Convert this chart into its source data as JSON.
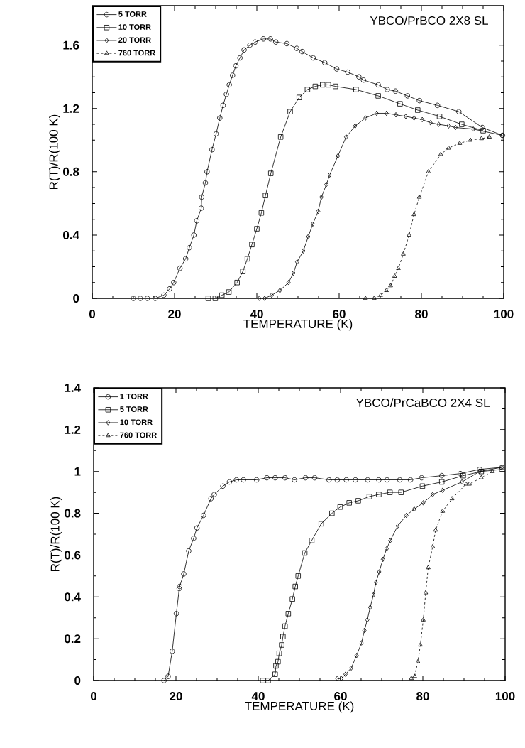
{
  "chart_data": [
    {
      "type": "line",
      "title": "YBCO/PrBCO 2X8 SL",
      "xlabel": "TEMPERATURE (K)",
      "ylabel": "R(T)/R(100 K)",
      "xlim": [
        0,
        100
      ],
      "ylim": [
        0,
        1.85
      ],
      "xticks": [
        0,
        20,
        40,
        60,
        80,
        100
      ],
      "yticks": [
        0,
        0.4,
        0.8,
        1.2,
        1.6
      ],
      "legend": "top left",
      "series": [
        {
          "name": "5 TORR",
          "color": "#000000",
          "marker": "circle",
          "line_style": "solid",
          "x": [
            10,
            11.7,
            13.4,
            15.3,
            17.4,
            18.8,
            19.8,
            21.3,
            22.7,
            23.6,
            24.7,
            25.4,
            26.5,
            26.6,
            27.5,
            27.9,
            29.1,
            30.1,
            31.0,
            31.8,
            32.6,
            33.3,
            34.1,
            34.9,
            35.9,
            36.9,
            38.3,
            39.6,
            41.6,
            43.3,
            44.6,
            47.3,
            49.7,
            51,
            53.7,
            56.5,
            59.4,
            62.1,
            64.8,
            65.9,
            69.5,
            71.7,
            73.7,
            76.6,
            79.5,
            83.9,
            89.1,
            94.8,
            99.7
          ],
          "values": [
            0,
            0,
            0,
            0,
            0.02,
            0.06,
            0.1,
            0.19,
            0.25,
            0.32,
            0.4,
            0.49,
            0.57,
            0.64,
            0.73,
            0.8,
            0.94,
            1.04,
            1.14,
            1.22,
            1.29,
            1.35,
            1.41,
            1.47,
            1.52,
            1.57,
            1.6,
            1.62,
            1.64,
            1.64,
            1.62,
            1.61,
            1.58,
            1.56,
            1.52,
            1.49,
            1.45,
            1.43,
            1.4,
            1.38,
            1.35,
            1.32,
            1.31,
            1.28,
            1.25,
            1.22,
            1.18,
            1.08,
            1.03
          ]
        },
        {
          "name": "10 TORR",
          "color": "#000000",
          "marker": "square",
          "line_style": "solid",
          "x": [
            28.2,
            29.9,
            31.5,
            33.2,
            35.2,
            36.6,
            37.7,
            38.8,
            40,
            41.1,
            42.1,
            43.4,
            45.8,
            48.1,
            50.3,
            52.3,
            54.2,
            56,
            57.4,
            59.1,
            64.1,
            69.5,
            74.8,
            79.1,
            84.4,
            89.8,
            95
          ],
          "values": [
            0,
            0,
            0.02,
            0.04,
            0.1,
            0.17,
            0.25,
            0.34,
            0.44,
            0.54,
            0.65,
            0.79,
            1.02,
            1.18,
            1.27,
            1.32,
            1.34,
            1.35,
            1.35,
            1.34,
            1.32,
            1.28,
            1.23,
            1.19,
            1.15,
            1.1,
            1.06
          ]
        },
        {
          "name": "20 TORR",
          "color": "#000000",
          "marker": "diamond",
          "line_style": "solid",
          "x": [
            40.6,
            41.9,
            43.6,
            45.6,
            47.7,
            48.9,
            49.8,
            51.3,
            52.5,
            53.6,
            54.9,
            55.7,
            56.9,
            57.7,
            59.7,
            61.7,
            63.9,
            66.4,
            69.1,
            71.5,
            73.8,
            76.2,
            78.2,
            80.2,
            82.2,
            84.2,
            86.6,
            88.3,
            92.6,
            99.7
          ],
          "values": [
            0,
            0,
            0.02,
            0.05,
            0.1,
            0.16,
            0.23,
            0.3,
            0.39,
            0.47,
            0.55,
            0.64,
            0.72,
            0.78,
            0.9,
            1.02,
            1.09,
            1.14,
            1.17,
            1.17,
            1.16,
            1.15,
            1.14,
            1.13,
            1.11,
            1.1,
            1.09,
            1.08,
            1.07,
            1.03
          ]
        },
        {
          "name": "760 TORR",
          "color": "#000000",
          "marker": "triangle",
          "line_style": "dashed",
          "x": [
            66.4,
            68.5,
            70.1,
            71.5,
            72.5,
            73.5,
            74.4,
            75.6,
            77,
            78.2,
            79.5,
            81.7,
            84.7,
            86.6,
            89.3,
            91.9,
            94.6,
            96.5
          ],
          "values": [
            0,
            0,
            0.02,
            0.05,
            0.08,
            0.14,
            0.19,
            0.28,
            0.4,
            0.53,
            0.64,
            0.8,
            0.91,
            0.95,
            0.98,
            1.0,
            1.01,
            1.02
          ]
        }
      ]
    },
    {
      "type": "line",
      "title": "YBCO/PrCaBCO 2X4 SL",
      "xlabel": "TEMPERATURE (K)",
      "ylabel": "R(T)/R(100 K)",
      "xlim": [
        0,
        100
      ],
      "ylim": [
        0,
        1.4
      ],
      "xticks": [
        0,
        20,
        40,
        60,
        80,
        100
      ],
      "yticks": [
        0,
        0.2,
        0.4,
        0.6,
        0.8,
        1,
        1.2,
        1.4
      ],
      "legend": "top left",
      "series": [
        {
          "name": "1 TORR",
          "color": "#000000",
          "marker": "circle",
          "line_style": "solid",
          "x": [
            17.1,
            18.1,
            19.1,
            20.1,
            20.8,
            20.9,
            21.9,
            23.1,
            24.3,
            25.1,
            26.7,
            28.5,
            29.3,
            31.4,
            33,
            34.7,
            36.4,
            39.6,
            42.1,
            44.1,
            46.5,
            48.8,
            51.5,
            53.7,
            57.2,
            59.2,
            61.4,
            63.6,
            66.6,
            69.3,
            71.3,
            74.4,
            77,
            79.7,
            84.6,
            89.1,
            93.8,
            99.2
          ],
          "values": [
            0,
            0.02,
            0.14,
            0.32,
            0.44,
            0.45,
            0.51,
            0.62,
            0.68,
            0.73,
            0.79,
            0.87,
            0.89,
            0.93,
            0.95,
            0.96,
            0.96,
            0.96,
            0.97,
            0.97,
            0.97,
            0.96,
            0.97,
            0.97,
            0.96,
            0.96,
            0.96,
            0.96,
            0.96,
            0.96,
            0.96,
            0.96,
            0.96,
            0.97,
            0.98,
            0.99,
            1.01,
            1.02
          ]
        },
        {
          "name": "5 TORR",
          "color": "#000000",
          "marker": "square",
          "line_style": "solid",
          "x": [
            41.1,
            42.4,
            44.1,
            44.3,
            44.8,
            45.1,
            45.7,
            46,
            46.5,
            47.3,
            48.3,
            49,
            49.7,
            51.3,
            53,
            55.3,
            57.9,
            59.9,
            62.1,
            64.3,
            67,
            69.3,
            72,
            74.7,
            79.9,
            84.6,
            89.8,
            94.2,
            99.2
          ],
          "values": [
            0,
            0,
            0.03,
            0.07,
            0.09,
            0.13,
            0.17,
            0.21,
            0.26,
            0.32,
            0.39,
            0.45,
            0.5,
            0.61,
            0.67,
            0.75,
            0.8,
            0.83,
            0.85,
            0.86,
            0.88,
            0.89,
            0.9,
            0.9,
            0.93,
            0.95,
            0.98,
            1.0,
            1.01
          ]
        },
        {
          "name": "10 TORR",
          "color": "#000000",
          "marker": "diamond",
          "line_style": "solid",
          "x": [
            59.2,
            60.2,
            61.2,
            62.6,
            63.9,
            65.1,
            65.8,
            66.5,
            67.2,
            68,
            68.6,
            69.4,
            70.3,
            71.2,
            72.1,
            73.9,
            76,
            77.9,
            80.1,
            82.4,
            84.8,
            89.5,
            93.8,
            99.2
          ],
          "values": [
            0.01,
            0.01,
            0.03,
            0.06,
            0.12,
            0.18,
            0.24,
            0.29,
            0.35,
            0.41,
            0.47,
            0.52,
            0.58,
            0.63,
            0.67,
            0.74,
            0.79,
            0.82,
            0.85,
            0.89,
            0.91,
            0.95,
            1.0,
            1.02
          ]
        },
        {
          "name": "760 TORR",
          "color": "#000000",
          "marker": "triangle",
          "line_style": "dashed",
          "x": [
            77.2,
            78,
            78.8,
            79.4,
            80.1,
            80.7,
            81.3,
            82.4,
            83.1,
            84.8,
            87.1,
            90.5,
            91.3,
            94.2,
            96.9
          ],
          "values": [
            0.01,
            0.02,
            0.09,
            0.17,
            0.29,
            0.42,
            0.54,
            0.64,
            0.72,
            0.81,
            0.87,
            0.94,
            0.94,
            0.97,
            1.0
          ]
        }
      ]
    }
  ]
}
